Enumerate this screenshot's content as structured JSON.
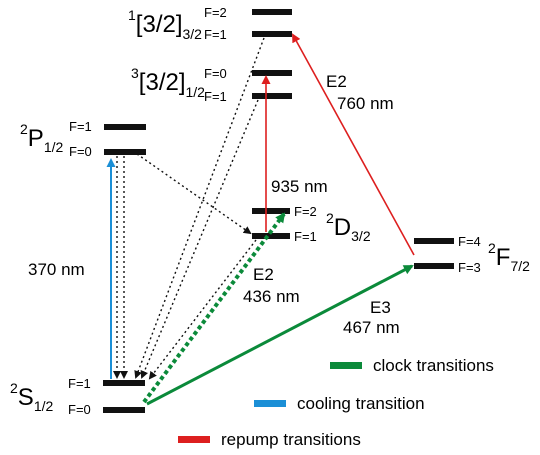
{
  "states": {
    "s12": {
      "main": "S",
      "sup": "2",
      "sub": "1/2",
      "f_upper": "F=1",
      "f_lower": "F=0"
    },
    "p12": {
      "main": "P",
      "sup": "2",
      "sub": "1/2",
      "f_upper": "F=1",
      "f_lower": "F=0"
    },
    "d32": {
      "main": "D",
      "sup": "2",
      "sub": "3/2",
      "f_upper": "F=2",
      "f_lower": "F=1"
    },
    "f72": {
      "main": "F",
      "sup": "2",
      "sub": "7/2",
      "f_upper": "F=4",
      "f_lower": "F=3"
    },
    "b1_2": {
      "main": "[3/2]",
      "sup": "3",
      "sub": "1/2",
      "f_upper": "F=0",
      "f_lower": "F=1"
    },
    "b3_2": {
      "main": "[3/2]",
      "sup": "1",
      "sub": "3/2",
      "f_upper": "F=2",
      "f_lower": "F=1"
    }
  },
  "transitions": {
    "cooling": {
      "label": "370 nm"
    },
    "d_repump": {
      "label": "935 nm"
    },
    "f_repump": {
      "type": "E2",
      "label": "760 nm"
    },
    "clock_e2": {
      "type": "E2",
      "label": "436 nm"
    },
    "clock_e3": {
      "type": "E3",
      "label": "467 nm"
    }
  },
  "legend": {
    "clock": "clock transitions",
    "cooling": "cooling transition",
    "repump": "repump transitions"
  },
  "colors": {
    "clock": "#0b8a3a",
    "cooling": "#1b8fd6",
    "repump": "#dd1f1f",
    "decay": "#111111"
  }
}
